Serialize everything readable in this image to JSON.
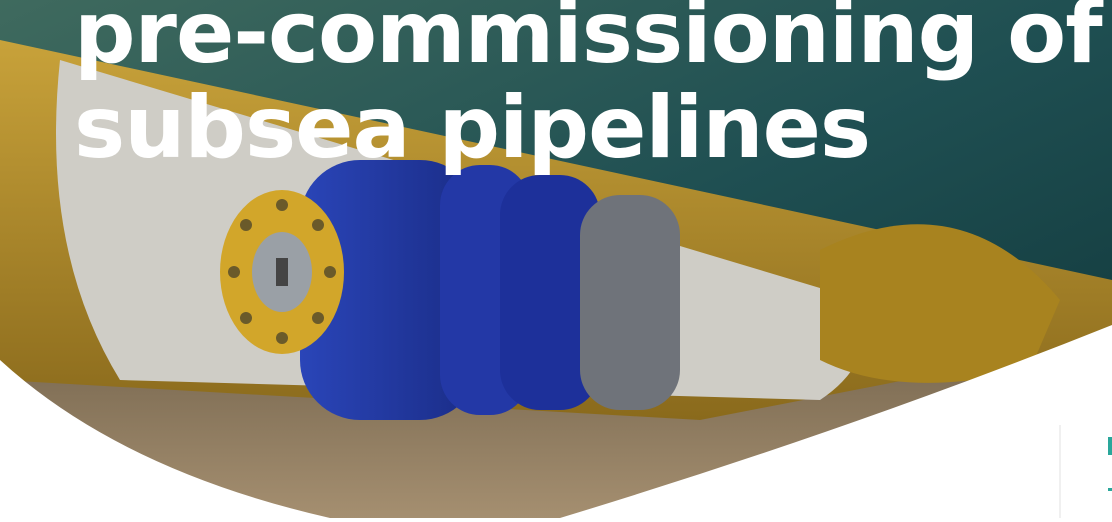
{
  "hero": {
    "title_lines": [
      "pre-commissioning of",
      "subsea pipelines"
    ]
  }
}
